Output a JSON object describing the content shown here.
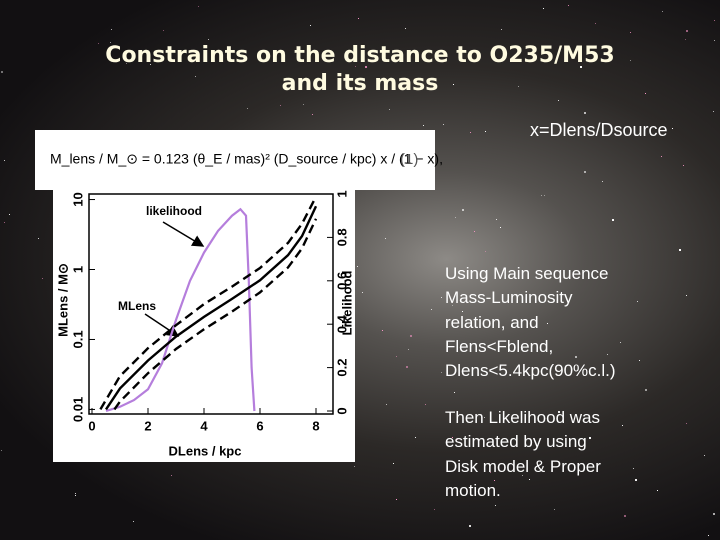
{
  "title": [
    "Constraints on the distance to O235/M53",
    "and its mass"
  ],
  "formula": "M_lens / M_⊙ = 0.123 (θ_E / mas)² (D_source / kpc) x / (1 − x),",
  "formula_number": "(1)",
  "x_definition": "x=Dlens/Dsource",
  "notes": [
    [
      "Using Main sequence",
      "Mass-Luminosity",
      "relation, and",
      "Flens<Fblend,",
      "Dlens<5.4kpc(90%c.l.)"
    ],
    [
      "Then Likelihood was",
      "estimated by using",
      "Disk model & Proper",
      "motion."
    ]
  ],
  "chart_data": {
    "type": "line",
    "xlabel": "DLens / kpc",
    "ylabel": "MLens / M⊙",
    "y2label": "Likelihood",
    "annotations": [
      "likelihood",
      "MLens"
    ],
    "xlim": [
      0,
      8.5
    ],
    "xticks": [
      0,
      2,
      4,
      6,
      8
    ],
    "ylim": [
      0.0095,
      12
    ],
    "yticks": [
      0.01,
      0.1,
      1,
      10
    ],
    "ylog": true,
    "y2lim": [
      0,
      1
    ],
    "y2ticks": [
      0,
      0.2,
      0.4,
      0.6,
      0.8,
      1
    ],
    "series": [
      {
        "axis": "y2",
        "color": "#b57edc",
        "dash": false,
        "x": [
          0.5,
          1,
          1.5,
          2,
          2.5,
          3,
          3.5,
          4,
          4.5,
          5,
          5.3,
          5.5,
          5.6,
          5.7,
          5.8
        ],
        "y": [
          0,
          0.02,
          0.05,
          0.1,
          0.22,
          0.42,
          0.6,
          0.73,
          0.83,
          0.9,
          0.93,
          0.9,
          0.6,
          0.2,
          0
        ]
      },
      {
        "color": "#000000",
        "dash": false,
        "x": [
          0.5,
          1,
          2,
          3,
          4,
          5,
          6,
          7,
          7.5,
          8
        ],
        "y": [
          0.01,
          0.02,
          0.05,
          0.11,
          0.21,
          0.38,
          0.7,
          1.6,
          3,
          8
        ]
      },
      {
        "color": "#000000",
        "dash": true,
        "x": [
          0.3,
          1,
          2,
          3,
          4,
          5,
          6,
          7,
          7.5,
          8
        ],
        "y": [
          0.01,
          0.03,
          0.075,
          0.16,
          0.32,
          0.57,
          1.05,
          2.4,
          4.5,
          11
        ]
      },
      {
        "color": "#000000",
        "dash": true,
        "x": [
          0.8,
          1,
          2,
          3,
          4,
          5,
          6,
          7,
          7.5,
          8
        ],
        "y": [
          0.01,
          0.013,
          0.033,
          0.073,
          0.14,
          0.25,
          0.47,
          1.07,
          2,
          5.3
        ]
      }
    ]
  }
}
